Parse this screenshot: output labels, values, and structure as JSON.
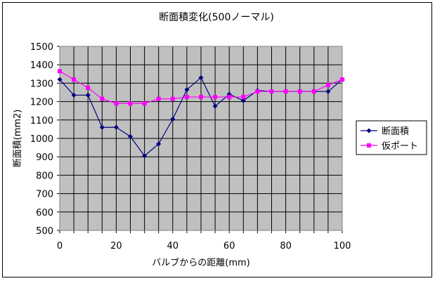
{
  "chart_data": {
    "type": "line",
    "title": "断面積変化(500ノーマル)",
    "xlabel": "バルブからの距離(mm)",
    "ylabel": "断面積(mm2)",
    "xlim": [
      0,
      100
    ],
    "ylim": [
      500,
      1500
    ],
    "x_ticks": [
      "0",
      "20",
      "40",
      "60",
      "80",
      "100"
    ],
    "y_ticks": [
      "500",
      "600",
      "700",
      "800",
      "900",
      "1000",
      "1100",
      "1200",
      "1300",
      "1400",
      "1500"
    ],
    "x_minor_step": 5,
    "grid": true,
    "legend": "right",
    "x": [
      0,
      5,
      10,
      15,
      20,
      25,
      30,
      35,
      40,
      45,
      50,
      55,
      60,
      65,
      70,
      75,
      80,
      85,
      90,
      95,
      100
    ],
    "series": [
      {
        "name": "断面積",
        "color": "#000080",
        "marker": "diamond",
        "values": [
          1320,
          1235,
          1235,
          1060,
          1060,
          1010,
          905,
          970,
          1105,
          1265,
          1330,
          1175,
          1240,
          1205,
          1260,
          1255,
          1255,
          1255,
          1255,
          1255,
          1320
        ]
      },
      {
        "name": "仮ポート",
        "color": "#ff00ff",
        "marker": "square",
        "values": [
          1365,
          1320,
          1275,
          1215,
          1190,
          1190,
          1190,
          1215,
          1215,
          1225,
          1225,
          1225,
          1225,
          1225,
          1255,
          1255,
          1255,
          1255,
          1255,
          1290,
          1320
        ]
      }
    ],
    "plot_background": "#c0c0c0",
    "grid_color": "#000000"
  }
}
